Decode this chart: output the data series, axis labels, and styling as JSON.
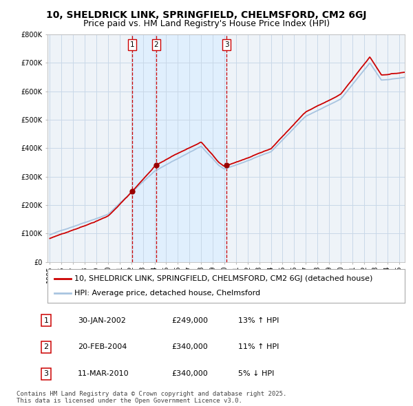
{
  "title": "10, SHELDRICK LINK, SPRINGFIELD, CHELMSFORD, CM2 6GJ",
  "subtitle": "Price paid vs. HM Land Registry's House Price Index (HPI)",
  "x_start_year": 1995,
  "x_end_year": 2025,
  "y_min": 0,
  "y_max": 800000,
  "y_ticks": [
    0,
    100000,
    200000,
    300000,
    400000,
    500000,
    600000,
    700000,
    800000
  ],
  "y_tick_labels": [
    "£0",
    "£100K",
    "£200K",
    "£300K",
    "£400K",
    "£500K",
    "£600K",
    "£700K",
    "£800K"
  ],
  "sale_points": [
    {
      "label": "1",
      "date_year": 2002.08,
      "price": 249000,
      "date_str": "30-JAN-2002",
      "price_str": "£249,000",
      "hpi_str": "13% ↑ HPI"
    },
    {
      "label": "2",
      "date_year": 2004.13,
      "price": 340000,
      "date_str": "20-FEB-2004",
      "price_str": "£340,000",
      "hpi_str": "11% ↑ HPI"
    },
    {
      "label": "3",
      "date_year": 2010.19,
      "price": 340000,
      "date_str": "11-MAR-2010",
      "price_str": "£340,000",
      "hpi_str": "5% ↓ HPI"
    }
  ],
  "hpi_color": "#a8c4e0",
  "price_color": "#cc0000",
  "sale_dot_color": "#990000",
  "sale_label_box_color": "#cc0000",
  "vline_color": "#cc0000",
  "shade_color": "#ddeeff",
  "grid_color": "#c8d8e8",
  "bg_color": "#eef3f8",
  "legend_label_price": "10, SHELDRICK LINK, SPRINGFIELD, CHELMSFORD, CM2 6GJ (detached house)",
  "legend_label_hpi": "HPI: Average price, detached house, Chelmsford",
  "footer_text": "Contains HM Land Registry data © Crown copyright and database right 2025.\nThis data is licensed under the Open Government Licence v3.0.",
  "title_fontsize": 10,
  "subtitle_fontsize": 9,
  "axis_fontsize": 7,
  "legend_fontsize": 8,
  "table_fontsize": 8,
  "footer_fontsize": 6.5
}
